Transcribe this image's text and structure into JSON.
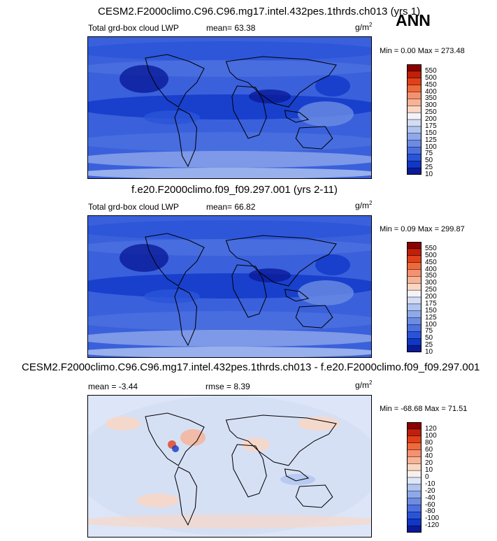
{
  "season": "ANN",
  "panels": [
    {
      "title": "CESM2.F2000climo.C96.C96.mg17.intel.432pes.1thrds.ch013 (yrs 1)",
      "left_label": "Total grd-box cloud LWP",
      "mid_label": "mean=  63.38",
      "units": "g/m",
      "units_sup": "2",
      "minmax": "Min =   0.00 Max = 273.48",
      "levels": [
        "550",
        "500",
        "450",
        "400",
        "350",
        "300",
        "250",
        "200",
        "175",
        "150",
        "125",
        "100",
        "75",
        "50",
        "25",
        "10"
      ],
      "colors": [
        "#8b0000",
        "#c0200a",
        "#e0401a",
        "#ee6a3a",
        "#f59070",
        "#f8b294",
        "#fcd6c2",
        "#f3f2f8",
        "#d2dcf4",
        "#b0c4f0",
        "#8ea8ea",
        "#6c8ce4",
        "#4c70e0",
        "#2a54d8",
        "#1038c8",
        "#0a1a98"
      ]
    },
    {
      "title": "f.e20.F2000climo.f09_f09.297.001 (yrs 2-11)",
      "left_label": "Total grd-box cloud LWP",
      "mid_label": "mean=  66.82",
      "units": "g/m",
      "units_sup": "2",
      "minmax": "Min =   0.09 Max = 299.87",
      "levels": [
        "550",
        "500",
        "450",
        "400",
        "350",
        "300",
        "250",
        "200",
        "175",
        "150",
        "125",
        "100",
        "75",
        "50",
        "25",
        "10"
      ],
      "colors": [
        "#8b0000",
        "#c0200a",
        "#e0401a",
        "#ee6a3a",
        "#f59070",
        "#f8b294",
        "#fcd6c2",
        "#f3f2f8",
        "#d2dcf4",
        "#b0c4f0",
        "#8ea8ea",
        "#6c8ce4",
        "#4c70e0",
        "#2a54d8",
        "#1038c8",
        "#0a1a98"
      ]
    },
    {
      "title": "CESM2.F2000climo.C96.C96.mg17.intel.432pes.1thrds.ch013 - f.e20.F2000climo.f09_f09.297.001",
      "left_label": "mean =  -3.44",
      "mid_label": "rmse =   8.39",
      "units": "g/m",
      "units_sup": "2",
      "minmax": "Min = -68.68 Max =  71.51",
      "levels": [
        "120",
        "100",
        "80",
        "60",
        "40",
        "20",
        "10",
        "0",
        "-10",
        "-20",
        "-40",
        "-60",
        "-80",
        "-100",
        "-120"
      ],
      "colors": [
        "#8b0000",
        "#c0200a",
        "#e0401a",
        "#ee6a3a",
        "#f59070",
        "#f8b294",
        "#fcd6c2",
        "#f8f0ea",
        "#dde6f8",
        "#b0c4f0",
        "#8ea8ea",
        "#6c8ce4",
        "#4c70e0",
        "#2a54d8",
        "#1038c8",
        "#0a1a98"
      ]
    }
  ]
}
